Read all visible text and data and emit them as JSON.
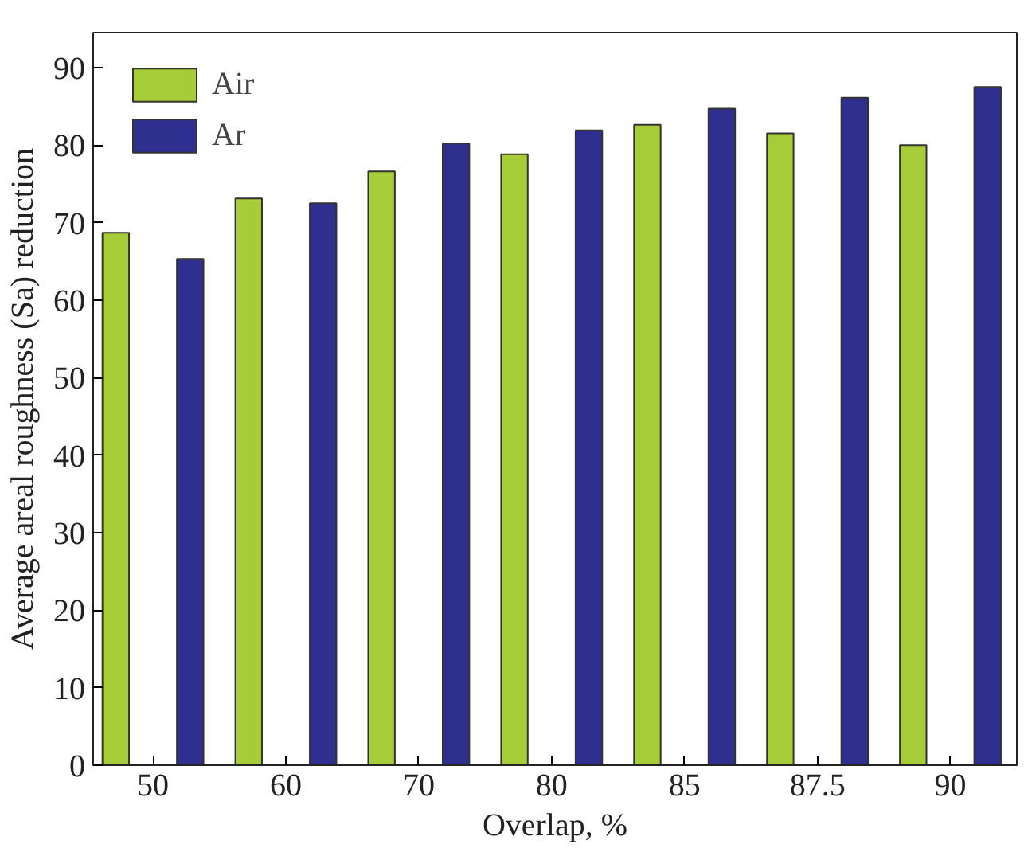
{
  "chart_data": {
    "type": "bar",
    "xlabel": "Overlap, %",
    "ylabel": "Average areal roughness (Sa) reduction",
    "categories": [
      "50",
      "60",
      "70",
      "80",
      "85",
      "87.5",
      "90"
    ],
    "series": [
      {
        "name": "Air",
        "color": "#a6cd38",
        "values": [
          68.7,
          73.1,
          76.6,
          78.8,
          82.6,
          81.5,
          80.0
        ]
      },
      {
        "name": "Ar",
        "color": "#2e2f8f",
        "values": [
          65.3,
          72.5,
          80.2,
          81.9,
          84.7,
          86.1,
          87.5
        ]
      }
    ],
    "ylim": [
      0,
      94.5
    ],
    "yticks": [
      0,
      10,
      20,
      30,
      40,
      50,
      60,
      70,
      80,
      90
    ],
    "grid": false,
    "legend": "top left"
  }
}
